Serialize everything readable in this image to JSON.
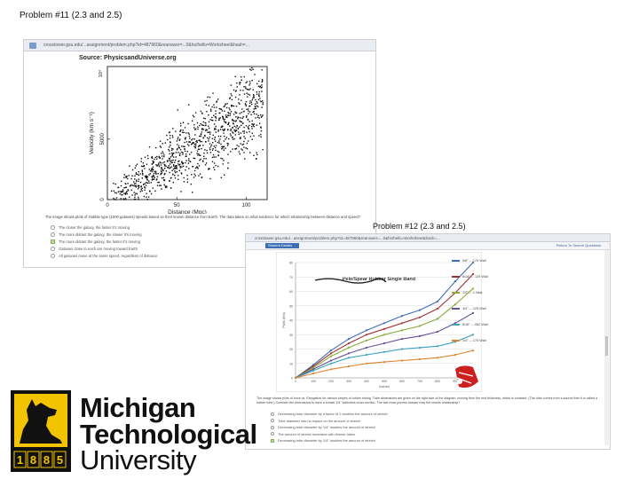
{
  "slide": {
    "title": "Problem #11 (2.3 and 2.5)",
    "title2": "Problem #12 (2.3 and 2.5)"
  },
  "screenshot1": {
    "address": "crosstower.gsu.edu/...assignment/problem.php?id=487960&reanswer=...0&hs/hello=Worksheet&hash=...",
    "caption": "Source: PhysicsandUniverse.org",
    "question": "The image shows plots of Hubble type (1000 galaxies) speeds based on their known distance from Earth. The data takes on what evidence for which relationship between distance and speed?",
    "answers": [
      "The closer the galaxy, the faster it's moving",
      "The more distant the galaxy, the slower it's moving",
      "The more distant the galaxy, the faster it's moving",
      "Galaxies close to each are moving toward Earth",
      "All galaxies move at the same speed, regardless of distance"
    ],
    "selected_index": 2
  },
  "screenshot2": {
    "address": "crosstower.gsu.edu/...assignment/problem.php?id=487960&reanswer=...0&hs/hello=Worksheet&hash=...",
    "tab_label": "Student Details",
    "tab_link": "Return To Search Questions",
    "question": "The image shows plots of force vs. Elongation for various stripes of rubber tubing. Tube dimensions are given on the right side of the diagram, moving from the end thickness, which is constant. (The tube comes from a source then it is called a rubber tube.) Consider the dimensions to have a known 1/4\" thickness cross section. The fact most precise answer may the results relationship?",
    "answers": [
      "Decreasing tube diameter by a factor of 2 doubles the amount of stretch",
      "Tube diameter has no impact on the amount of stretch",
      "Decreasing tube diameter by 1/4\" doubles the amount of stretch",
      "The amount of stretch increases with thinner tubes",
      "Decreasing tube diameter by 1/4\" doubles the amount of stretch"
    ],
    "selected_index": 4
  },
  "chart1": {
    "chart_data": {
      "type": "scatter",
      "title": "",
      "xlabel": "Distance  (Mpc)",
      "ylabel": "Velocity (km s⁻¹)",
      "y_exp_label": "10⁴",
      "xlim": [
        0,
        115
      ],
      "ylim": [
        0,
        11000
      ],
      "x_ticks": [
        "0",
        "50",
        "100"
      ],
      "y_ticks": [
        "0",
        "5000"
      ],
      "trend": {
        "slope": 72,
        "intercept": 0
      },
      "point_count": 1000
    }
  },
  "chart2": {
    "chart_data": {
      "type": "line",
      "title": "Pele/Spear Rubber Single Band",
      "xlabel": "Inches",
      "ylabel": "Pulls (lbs)",
      "x": [
        0,
        100,
        200,
        300,
        400,
        500,
        600,
        700,
        800,
        900,
        1000
      ],
      "ylim": [
        0,
        80
      ],
      "y_ticks": [
        "0",
        "10",
        "20",
        "30",
        "40",
        "50",
        "60",
        "70",
        "80"
      ],
      "x_ticks": [
        "0",
        "100",
        "200",
        "300",
        "400",
        "500",
        "600",
        "700",
        "800",
        "900",
        "1000"
      ],
      "series": [
        {
          "name": "5/8\" – .175 Wall",
          "color": "#3f6eb8",
          "values": [
            0,
            9,
            19,
            27,
            33,
            38,
            43,
            47,
            53,
            67,
            80
          ]
        },
        {
          "name": "9/16\" – .125 Wall",
          "color": "#9c3436",
          "values": [
            0,
            8,
            17,
            24,
            30,
            34,
            38,
            42,
            48,
            59,
            72
          ]
        },
        {
          "name": "1/2\" – .1 Wall",
          "color": "#8aab3a",
          "values": [
            0,
            7,
            15,
            21,
            26,
            30,
            33,
            36,
            41,
            51,
            62
          ]
        },
        {
          "name": "3/4\" – .125 Wall",
          "color": "#6a4f9a",
          "values": [
            0,
            6,
            12,
            17,
            21,
            24,
            27,
            29,
            32,
            38,
            45
          ]
        },
        {
          "name": "5/16\" – .062 Wall",
          "color": "#3aa1c0",
          "values": [
            0,
            5,
            10,
            14,
            16,
            18,
            20,
            21,
            22,
            25,
            30
          ]
        },
        {
          "name": "1/4\" – .175 Wall",
          "color": "#e0832e",
          "values": [
            0,
            3,
            6,
            8,
            10,
            11,
            12,
            13,
            14,
            16,
            19
          ]
        }
      ]
    }
  },
  "logo": {
    "line1": "Michigan",
    "line2": "Technological",
    "line3": "University",
    "year_digits": [
      "1",
      "8",
      "8",
      "5"
    ]
  }
}
